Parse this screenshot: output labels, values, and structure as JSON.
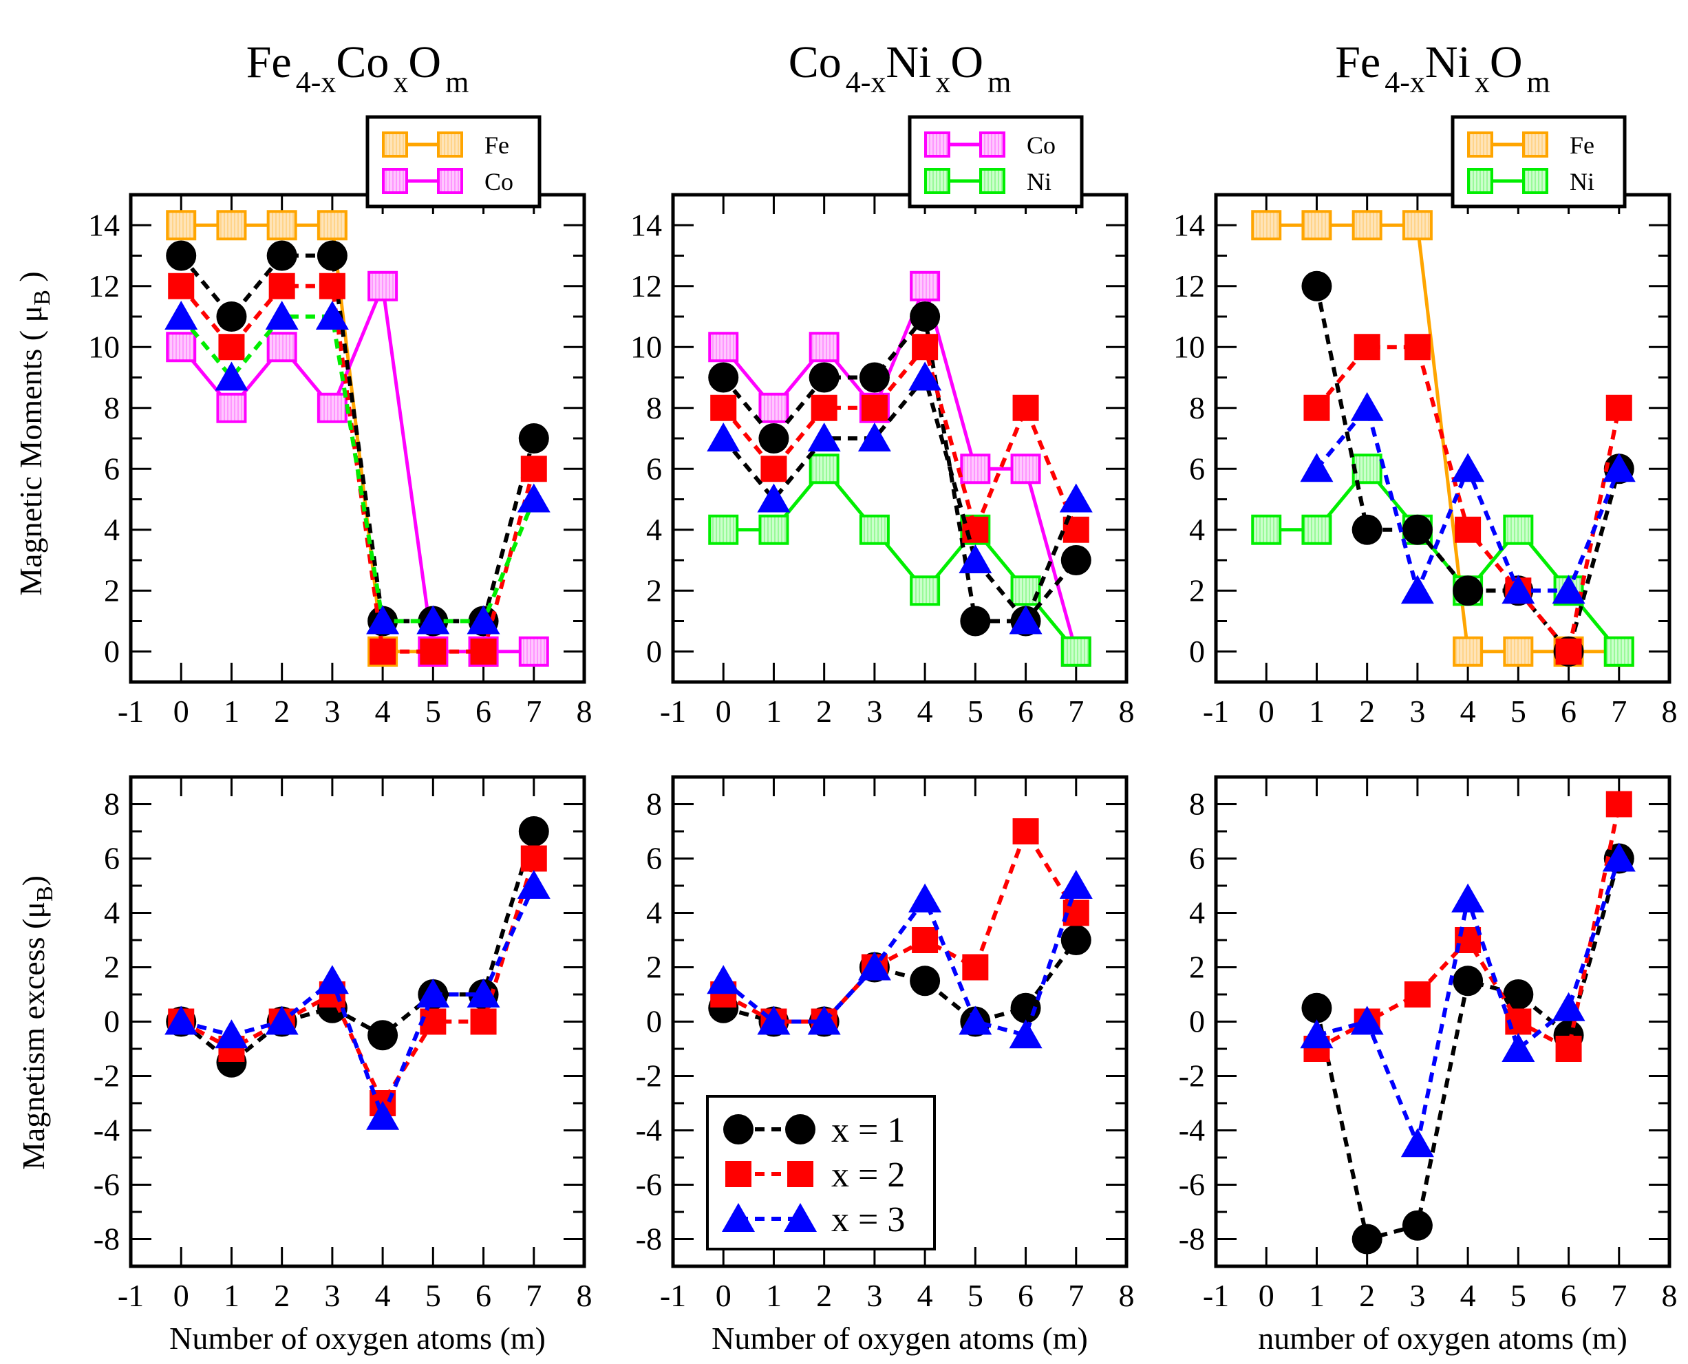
{
  "figure": {
    "ylabel_top": {
      "text": "Magnetic Moments ( μ",
      "sub": "B",
      "close": " )"
    },
    "ylabel_bottom": {
      "text": "Magnetism excess (μ",
      "sub": "B",
      "close": ")"
    }
  },
  "colors": {
    "x1": "#000000",
    "x2": "#ff0000",
    "x3": "#0000ff",
    "Fe": "#ffa500",
    "Co": "#ff00ff",
    "Ni": "#00ee00"
  },
  "chart_data": [
    {
      "id": "fe-co-moments",
      "type": "line",
      "title": [
        {
          "base": "Fe",
          "sub": "4-x"
        },
        {
          "base": "Co",
          "sub": "x"
        },
        {
          "base": "O",
          "sub": "m"
        }
      ],
      "xlabel": "",
      "ylabel": "top",
      "x": [
        0,
        1,
        2,
        3,
        4,
        5,
        6,
        7
      ],
      "xlim": [
        -1,
        8
      ],
      "ylim": [
        -1,
        15
      ],
      "xticks": [
        "-1",
        "0",
        "1",
        "2",
        "3",
        "4",
        "5",
        "6",
        "7",
        "8"
      ],
      "yticks": [
        "0",
        "2",
        "4",
        "6",
        "8",
        "10",
        "12",
        "14"
      ],
      "legend": {
        "placement": "top-right",
        "entries": [
          "Fe",
          "Co"
        ]
      },
      "series": [
        {
          "name": "Fe",
          "marker": "hatched-square",
          "color": "#ffa500",
          "line": "#ffa500",
          "style": "solid",
          "values": [
            14,
            14,
            14,
            14,
            0,
            0,
            0,
            null
          ]
        },
        {
          "name": "Co",
          "marker": "hatched-square",
          "color": "#ff00ff",
          "line": "#ff00ff",
          "style": "solid",
          "values": [
            10,
            8,
            10,
            8,
            12,
            0,
            0,
            0
          ]
        },
        {
          "name": "x = 1",
          "marker": "circle",
          "color": "#000000",
          "line": "#000000",
          "style": "dashed",
          "values": [
            13,
            11,
            13,
            13,
            1,
            1,
            1,
            7
          ]
        },
        {
          "name": "x = 2",
          "marker": "square",
          "color": "#ff0000",
          "line": "#ff0000",
          "style": "dashed",
          "values": [
            12,
            10,
            12,
            12,
            0,
            0,
            0,
            6
          ]
        },
        {
          "name": "x = 3",
          "marker": "triangle",
          "color": "#0000ff",
          "line": "#00ee00",
          "style": "dashed",
          "values": [
            11,
            9,
            11,
            11,
            1,
            1,
            1,
            5
          ]
        }
      ]
    },
    {
      "id": "co-ni-moments",
      "type": "line",
      "title": [
        {
          "base": "Co",
          "sub": "4-x"
        },
        {
          "base": "Ni",
          "sub": "x"
        },
        {
          "base": "O",
          "sub": "m"
        }
      ],
      "xlabel": "",
      "ylabel": "",
      "x": [
        0,
        1,
        2,
        3,
        4,
        5,
        6,
        7
      ],
      "xlim": [
        -1,
        8
      ],
      "ylim": [
        -1,
        15
      ],
      "xticks": [
        "-1",
        "0",
        "1",
        "2",
        "3",
        "4",
        "5",
        "6",
        "7",
        "8"
      ],
      "yticks": [
        "0",
        "2",
        "4",
        "6",
        "8",
        "10",
        "12",
        "14"
      ],
      "legend": {
        "placement": "top-right",
        "entries": [
          "Co",
          "Ni"
        ]
      },
      "series": [
        {
          "name": "Co",
          "marker": "hatched-square",
          "color": "#ff00ff",
          "line": "#ff00ff",
          "style": "solid",
          "values": [
            10,
            8,
            10,
            8,
            12,
            6,
            6,
            0
          ]
        },
        {
          "name": "Ni",
          "marker": "hatched-square",
          "color": "#00ee00",
          "line": "#00ee00",
          "style": "solid",
          "values": [
            4,
            4,
            6,
            4,
            2,
            4,
            2,
            0
          ]
        },
        {
          "name": "x = 1",
          "marker": "circle",
          "color": "#000000",
          "line": "#000000",
          "style": "dashed",
          "values": [
            9,
            7,
            9,
            9,
            11,
            1,
            1,
            3
          ]
        },
        {
          "name": "x = 2",
          "marker": "square",
          "color": "#ff0000",
          "line": "#ff0000",
          "style": "dashed",
          "values": [
            8,
            6,
            8,
            8,
            10,
            4,
            8,
            4
          ]
        },
        {
          "name": "x = 3",
          "marker": "triangle",
          "color": "#0000ff",
          "line": "#000000",
          "style": "dashed",
          "values": [
            7,
            5,
            7,
            7,
            9,
            3,
            1,
            5
          ]
        }
      ]
    },
    {
      "id": "fe-ni-moments",
      "type": "line",
      "title": [
        {
          "base": "Fe",
          "sub": "4-x"
        },
        {
          "base": "Ni",
          "sub": "x"
        },
        {
          "base": "O",
          "sub": "m"
        }
      ],
      "xlabel": "",
      "ylabel": "",
      "x": [
        0,
        1,
        2,
        3,
        4,
        5,
        6,
        7
      ],
      "xlim": [
        -1,
        8
      ],
      "ylim": [
        -1,
        15
      ],
      "xticks": [
        "-1",
        "0",
        "1",
        "2",
        "3",
        "4",
        "5",
        "6",
        "7",
        "8"
      ],
      "yticks": [
        "0",
        "2",
        "4",
        "6",
        "8",
        "10",
        "12",
        "14"
      ],
      "legend": {
        "placement": "top-right",
        "entries": [
          "Fe",
          "Ni"
        ]
      },
      "series": [
        {
          "name": "Fe",
          "marker": "hatched-square",
          "color": "#ffa500",
          "line": "#ffa500",
          "style": "solid",
          "values": [
            14,
            14,
            14,
            14,
            0,
            0,
            0,
            0
          ]
        },
        {
          "name": "Ni",
          "marker": "hatched-square",
          "color": "#00ee00",
          "line": "#00ee00",
          "style": "solid",
          "values": [
            4,
            4,
            6,
            4,
            2,
            4,
            2,
            0
          ]
        },
        {
          "name": "x = 1",
          "marker": "circle",
          "color": "#000000",
          "line": "#000000",
          "style": "dashed",
          "values": [
            null,
            12,
            4,
            4,
            2,
            2,
            0,
            6
          ]
        },
        {
          "name": "x = 2",
          "marker": "square",
          "color": "#ff0000",
          "line": "#ff0000",
          "style": "dashed",
          "values": [
            null,
            8,
            10,
            10,
            4,
            2,
            0,
            8
          ]
        },
        {
          "name": "x = 3",
          "marker": "triangle",
          "color": "#0000ff",
          "line": "#0000ff",
          "style": "dashed",
          "values": [
            null,
            6,
            8,
            2,
            6,
            2,
            2,
            6
          ]
        }
      ]
    },
    {
      "id": "fe-co-excess",
      "type": "line",
      "title": [],
      "xlabel": "Number of oxygen atoms (m)",
      "ylabel": "bottom",
      "x": [
        0,
        1,
        2,
        3,
        4,
        5,
        6,
        7
      ],
      "xlim": [
        -1,
        8
      ],
      "ylim": [
        -9,
        9
      ],
      "xticks": [
        "-1",
        "0",
        "1",
        "2",
        "3",
        "4",
        "5",
        "6",
        "7",
        "8"
      ],
      "yticks": [
        "-8",
        "-6",
        "-4",
        "-2",
        "0",
        "2",
        "4",
        "6",
        "8"
      ],
      "legend": null,
      "series": [
        {
          "name": "x = 1",
          "marker": "circle",
          "color": "#000000",
          "line": "#000000",
          "style": "dashed",
          "values": [
            0,
            -1.5,
            0,
            0.5,
            -0.5,
            1,
            1,
            7
          ]
        },
        {
          "name": "x = 2",
          "marker": "square",
          "color": "#ff0000",
          "line": "#ff0000",
          "style": "dashed",
          "values": [
            0,
            -1,
            0,
            1,
            -3,
            0,
            0,
            6
          ]
        },
        {
          "name": "x = 3",
          "marker": "triangle",
          "color": "#0000ff",
          "line": "#0000ff",
          "style": "dashed",
          "values": [
            0,
            -0.5,
            0,
            1.5,
            -3.5,
            1,
            1,
            5
          ]
        }
      ]
    },
    {
      "id": "co-ni-excess",
      "type": "line",
      "title": [],
      "xlabel": "Number of oxygen atoms (m)",
      "ylabel": "",
      "x": [
        0,
        1,
        2,
        3,
        4,
        5,
        6,
        7
      ],
      "xlim": [
        -1,
        8
      ],
      "ylim": [
        -9,
        9
      ],
      "xticks": [
        "-1",
        "0",
        "1",
        "2",
        "3",
        "4",
        "5",
        "6",
        "7",
        "8"
      ],
      "yticks": [
        "-8",
        "-6",
        "-4",
        "-2",
        "0",
        "2",
        "4",
        "6",
        "8"
      ],
      "legend": {
        "placement": "bottom-left",
        "entries": [
          "x = 1",
          "x = 2",
          "x = 3"
        ]
      },
      "series": [
        {
          "name": "x = 1",
          "marker": "circle",
          "color": "#000000",
          "line": "#000000",
          "style": "dashed",
          "values": [
            0.5,
            0,
            0,
            2,
            1.5,
            0,
            0.5,
            3
          ]
        },
        {
          "name": "x = 2",
          "marker": "square",
          "color": "#ff0000",
          "line": "#ff0000",
          "style": "dashed",
          "values": [
            1,
            0,
            0,
            2,
            3,
            2,
            7,
            4
          ]
        },
        {
          "name": "x = 3",
          "marker": "triangle",
          "color": "#0000ff",
          "line": "#0000ff",
          "style": "dashed",
          "values": [
            1.5,
            0,
            0,
            2,
            4.5,
            0,
            -0.5,
            5
          ]
        }
      ]
    },
    {
      "id": "fe-ni-excess",
      "type": "line",
      "title": [],
      "xlabel": "number of oxygen atoms (m)",
      "ylabel": "",
      "x": [
        0,
        1,
        2,
        3,
        4,
        5,
        6,
        7
      ],
      "xlim": [
        -1,
        8
      ],
      "ylim": [
        -9,
        9
      ],
      "xticks": [
        "-1",
        "0",
        "1",
        "2",
        "3",
        "4",
        "5",
        "6",
        "7",
        "8"
      ],
      "yticks": [
        "-8",
        "-6",
        "-4",
        "-2",
        "0",
        "2",
        "4",
        "6",
        "8"
      ],
      "legend": null,
      "series": [
        {
          "name": "x = 1",
          "marker": "circle",
          "color": "#000000",
          "line": "#000000",
          "style": "dashed",
          "values": [
            null,
            0.5,
            -8,
            -7.5,
            1.5,
            1,
            -0.5,
            6
          ]
        },
        {
          "name": "x = 2",
          "marker": "square",
          "color": "#ff0000",
          "line": "#ff0000",
          "style": "dashed",
          "values": [
            null,
            -1,
            0,
            1,
            3,
            0,
            -1,
            8
          ]
        },
        {
          "name": "x = 3",
          "marker": "triangle",
          "color": "#0000ff",
          "line": "#0000ff",
          "style": "dashed",
          "values": [
            null,
            -0.5,
            0,
            -4.5,
            4.5,
            -1,
            0.5,
            6
          ]
        }
      ]
    }
  ]
}
